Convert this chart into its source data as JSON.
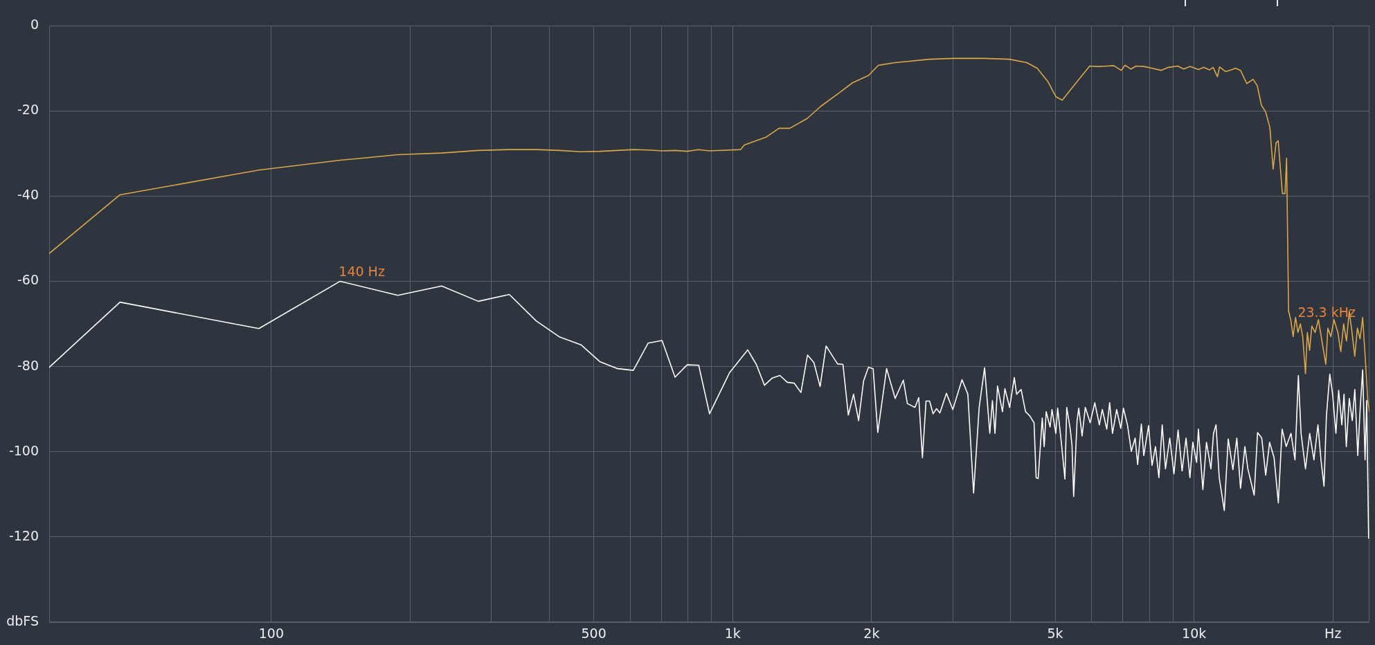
{
  "chart_data": {
    "type": "line",
    "log": "x",
    "grid": true,
    "xlim": [
      33,
      24000
    ],
    "ylim": [
      -140,
      0
    ],
    "xticks": [
      100,
      {
        "value": 200,
        "label": null
      },
      {
        "value": 300,
        "label": null
      },
      {
        "value": 400,
        "label": null
      },
      500,
      {
        "value": 600,
        "label": null
      },
      {
        "value": 700,
        "label": null
      },
      {
        "value": 800,
        "label": null
      },
      {
        "value": 900,
        "label": null
      },
      {
        "value": 1000,
        "label": "1k"
      },
      {
        "value": 2000,
        "label": "2k"
      },
      {
        "value": 3000,
        "label": null
      },
      {
        "value": 4000,
        "label": null
      },
      {
        "value": 5000,
        "label": "5k"
      },
      {
        "value": 6000,
        "label": null
      },
      {
        "value": 7000,
        "label": null
      },
      {
        "value": 8000,
        "label": null
      },
      {
        "value": 9000,
        "label": null
      },
      {
        "value": 10000,
        "label": "10k"
      },
      {
        "value": 20000,
        "label": "Hz"
      }
    ],
    "yticks": [
      0,
      -20,
      -40,
      -60,
      -80,
      -100,
      -120,
      {
        "value": -140,
        "label": "dbFS"
      }
    ],
    "series": [
      {
        "color": "#ffffff",
        "x": [
          33,
          47,
          94,
          141,
          188,
          234,
          281,
          328,
          375,
          422,
          469,
          516,
          563,
          609,
          656,
          703,
          750,
          797,
          844,
          891,
          984,
          1078,
          1125,
          1172,
          1219,
          1266,
          1313,
          1359,
          1406,
          1453,
          1500,
          1547,
          1594,
          1688,
          1734,
          1781,
          1828,
          1875,
          1922,
          1969,
          2016,
          2063,
          2156,
          2250,
          2344,
          2391,
          2484,
          2531,
          2578,
          2625,
          2672,
          2719,
          2766,
          2813,
          2906,
          3000,
          3141,
          3234,
          3328,
          3422,
          3516,
          3609,
          3656,
          3703,
          3750,
          3844,
          3891,
          3984,
          4078,
          4125,
          4219,
          4313,
          4406,
          4500,
          4547,
          4594,
          4688,
          4734,
          4781,
          4875,
          4922,
          5016,
          5063,
          5156,
          5250,
          5297,
          5391,
          5438,
          5484,
          5578,
          5625,
          5719,
          5813,
          5953,
          6047,
          6094,
          6234,
          6328,
          6469,
          6563,
          6656,
          6797,
          6938,
          7031,
          7172,
          7313,
          7453,
          7547,
          7688,
          7781,
          7969,
          8109,
          8250,
          8391,
          8531,
          8672,
          8859,
          9047,
          9234,
          9422,
          9609,
          9797,
          9938,
          10130,
          10220,
          10450,
          10640,
          10880,
          11020,
          11160,
          11340,
          11630,
          11860,
          12140,
          12380,
          12610,
          12890,
          13080,
          13500,
          13730,
          14020,
          14300,
          14580,
          14910,
          15230,
          15520,
          15840,
          16220,
          16550,
          16830,
          17060,
          17440,
          17810,
          18190,
          18560,
          18840,
          19130,
          19360,
          19690,
          19970,
          20300,
          20580,
          20910,
          21140,
          21380,
          21700,
          22030,
          22310,
          22640,
          22920,
          23200,
          23480,
          23670,
          23900
        ],
        "values": [
          -80.2,
          -64.9,
          -71.1,
          -60,
          -63.3,
          -61.1,
          -64.7,
          -63.1,
          -69.3,
          -73.1,
          -74.9,
          -78.9,
          -80.5,
          -80.9,
          -74.5,
          -73.9,
          -82.5,
          -79.6,
          -79.7,
          -91.1,
          -81.5,
          -76.1,
          -79.5,
          -84.4,
          -82.7,
          -82.1,
          -83.7,
          -83.9,
          -86.1,
          -77.3,
          -79.1,
          -84.7,
          -75.2,
          -79.4,
          -79.5,
          -91.4,
          -86.5,
          -92.7,
          -83.4,
          -80.2,
          -80.5,
          -95.5,
          -80.5,
          -87.5,
          -83.2,
          -88.7,
          -89.6,
          -87.3,
          -101.4,
          -88.1,
          -88.1,
          -91.1,
          -89.9,
          -90.9,
          -86.3,
          -90.1,
          -83.1,
          -86.5,
          -109.7,
          -89.6,
          -80.3,
          -95.7,
          -88.0,
          -95.7,
          -84.6,
          -90.6,
          -85.2,
          -89.6,
          -82.6,
          -86.5,
          -85.4,
          -90.6,
          -91.6,
          -93.2,
          -106.1,
          -106.3,
          -92.1,
          -98.8,
          -90.6,
          -94.2,
          -90.1,
          -95.7,
          -89.8,
          -97.8,
          -106.4,
          -89.6,
          -94.7,
          -98.5,
          -110.5,
          -92.7,
          -89.8,
          -96.3,
          -89.6,
          -93.2,
          -90.1,
          -88.5,
          -93.7,
          -90.1,
          -94.7,
          -88.5,
          -95.7,
          -90.1,
          -94.5,
          -89.8,
          -93.7,
          -99.9,
          -96.8,
          -103.0,
          -93.5,
          -100.9,
          -93.9,
          -103.2,
          -98.8,
          -106.1,
          -93.7,
          -104.0,
          -96.8,
          -105.2,
          -94.9,
          -104.5,
          -96.8,
          -106.1,
          -97.8,
          -102.5,
          -94.7,
          -108.9,
          -97.8,
          -104.0,
          -95.7,
          -93.7,
          -106.1,
          -113.8,
          -97.0,
          -104.2,
          -96.8,
          -108.6,
          -98.8,
          -104.0,
          -110.2,
          -95.5,
          -96.8,
          -105.5,
          -97.8,
          -101.4,
          -112.0,
          -94.7,
          -98.8,
          -95.7,
          -101.9,
          -82.1,
          -95.7,
          -104.0,
          -95.7,
          -101.9,
          -93.7,
          -101.9,
          -108.1,
          -91.6,
          -81.8,
          -86.5,
          -95.7,
          -85.6,
          -93.7,
          -86.5,
          -98.8,
          -87.5,
          -92.7,
          -85.4,
          -100.9,
          -89.6,
          -80.8,
          -101.9,
          -88,
          -120.3
        ]
      },
      {
        "color": "#d9a74a",
        "x": [
          33,
          47,
          94,
          141,
          188,
          234,
          281,
          328,
          375,
          422,
          469,
          516,
          563,
          609,
          656,
          703,
          750,
          797,
          844,
          891,
          1040,
          1060,
          1180,
          1260,
          1330,
          1450,
          1550,
          1710,
          1820,
          1970,
          2070,
          2250,
          2670,
          3000,
          3510,
          3980,
          4340,
          4570,
          4820,
          5020,
          5180,
          5350,
          5580,
          5940,
          6200,
          6460,
          6700,
          6950,
          7090,
          7300,
          7480,
          7800,
          8100,
          8480,
          8800,
          9220,
          9500,
          9800,
          10230,
          10500,
          10800,
          11000,
          11240,
          11360,
          11700,
          12100,
          12300,
          12610,
          13010,
          13430,
          13710,
          14000,
          14300,
          14600,
          14840,
          15060,
          15220,
          15540,
          15750,
          15870,
          16030,
          16200,
          16400,
          16600,
          16800,
          17000,
          17200,
          17440,
          17600,
          17800,
          18000,
          18300,
          18600,
          18900,
          19300,
          19500,
          19800,
          20100,
          20500,
          20800,
          21100,
          21400,
          21700,
          22000,
          22300,
          22600,
          22900,
          23200,
          23500,
          23800,
          24000
        ],
        "values": [
          -53.5,
          -39.7,
          -33.9,
          -31.6,
          -30.3,
          -29.9,
          -29.3,
          -29.1,
          -29.1,
          -29.3,
          -29.6,
          -29.5,
          -29.3,
          -29.1,
          -29.2,
          -29.4,
          -29.3,
          -29.5,
          -29.1,
          -29.4,
          -29.1,
          -28.0,
          -26.2,
          -24.1,
          -24.1,
          -21.8,
          -19.0,
          -15.6,
          -13.4,
          -11.7,
          -9.3,
          -8.7,
          -7.9,
          -7.7,
          -7.7,
          -7.9,
          -8.7,
          -10.0,
          -13.1,
          -16.7,
          -17.5,
          -15.6,
          -13.1,
          -9.5,
          -9.6,
          -9.5,
          -9.4,
          -10.5,
          -9.3,
          -10.2,
          -9.5,
          -9.6,
          -10.0,
          -10.5,
          -9.8,
          -9.5,
          -10.2,
          -9.6,
          -10.3,
          -9.8,
          -10.4,
          -9.8,
          -12.0,
          -9.7,
          -10.8,
          -10.3,
          -10.0,
          -10.5,
          -13.6,
          -12.6,
          -14.1,
          -18.7,
          -20.3,
          -23.9,
          -33.7,
          -27.5,
          -27.0,
          -39.4,
          -39.4,
          -31.1,
          -67.0,
          -69,
          -73,
          -68.5,
          -72,
          -70,
          -73,
          -81.7,
          -72,
          -76.2,
          -70.5,
          -72,
          -69,
          -73.5,
          -79.5,
          -71,
          -73,
          -69,
          -72,
          -76.5,
          -70,
          -74,
          -67,
          -72,
          -77.6,
          -71,
          -73.5,
          -68.5,
          -78,
          -88,
          -90.6
        ]
      }
    ],
    "annotations": [
      {
        "text": "140 Hz",
        "x": 141,
        "y": -60
      },
      "23.3 kHz"
    ]
  }
}
